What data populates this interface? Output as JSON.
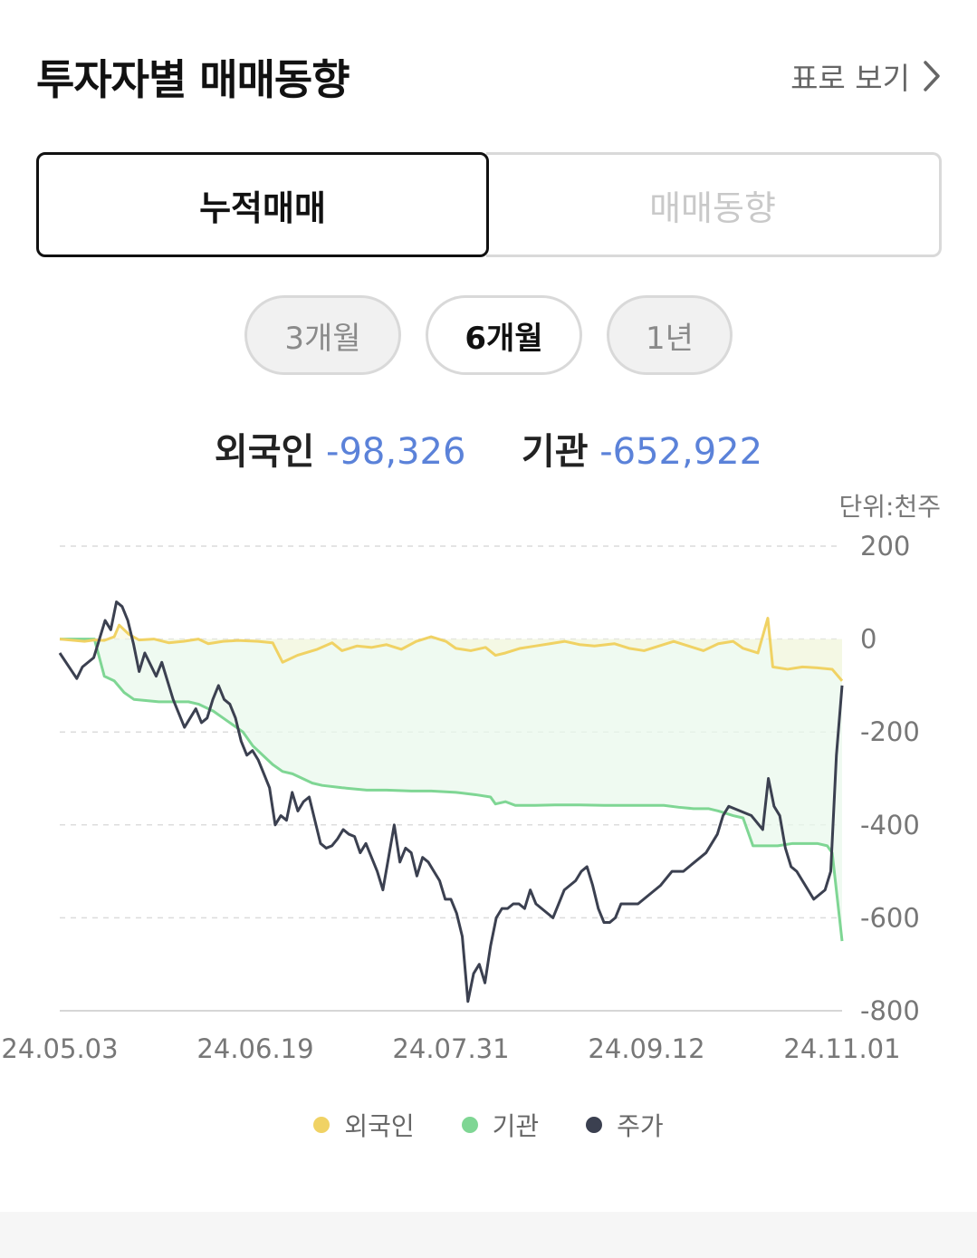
{
  "header": {
    "title": "투자자별 매매동향",
    "table_link": "표로 보기"
  },
  "tabs": [
    {
      "label": "누적매매",
      "active": true
    },
    {
      "label": "매매동향",
      "active": false
    }
  ],
  "periods": [
    {
      "label": "3개월",
      "active": false
    },
    {
      "label": "6개월",
      "active": true
    },
    {
      "label": "1년",
      "active": false
    }
  ],
  "summary": {
    "foreign_label": "외국인",
    "foreign_value": "-98,326",
    "inst_label": "기관",
    "inst_value": "-652,922"
  },
  "unit": "단위:천주",
  "colors": {
    "foreign": "#f0d264",
    "institution": "#7fd694",
    "price": "#3b4050",
    "value_text": "#5b82d9"
  },
  "chart_data": {
    "type": "line",
    "title": "",
    "xlabel": "",
    "ylabel": "",
    "ylim": [
      -800,
      200
    ],
    "yticks": [
      "200",
      "0",
      "-200",
      "-400",
      "-600",
      "-800"
    ],
    "xticks": [
      "24.05.03",
      "24.06.19",
      "24.07.31",
      "24.09.12",
      "24.11.01"
    ],
    "grid": true,
    "legend_position": "bottom",
    "series": [
      {
        "name": "외국인",
        "key": "foreign",
        "points": [
          [
            0,
            0
          ],
          [
            5,
            -5
          ],
          [
            7,
            -2
          ],
          [
            9,
            -3
          ],
          [
            11,
            5
          ],
          [
            12,
            30
          ],
          [
            14,
            10
          ],
          [
            16,
            -2
          ],
          [
            19,
            0
          ],
          [
            22,
            -8
          ],
          [
            25,
            -5
          ],
          [
            28,
            0
          ],
          [
            30,
            -10
          ],
          [
            33,
            -5
          ],
          [
            36,
            -3
          ],
          [
            40,
            -5
          ],
          [
            43,
            -8
          ],
          [
            45,
            -50
          ],
          [
            48,
            -35
          ],
          [
            52,
            -22
          ],
          [
            55,
            -8
          ],
          [
            57,
            -25
          ],
          [
            60,
            -15
          ],
          [
            63,
            -18
          ],
          [
            66,
            -12
          ],
          [
            69,
            -22
          ],
          [
            72,
            -5
          ],
          [
            75,
            5
          ],
          [
            78,
            -5
          ],
          [
            80,
            -20
          ],
          [
            83,
            -25
          ],
          [
            86,
            -18
          ],
          [
            88,
            -35
          ],
          [
            90,
            -30
          ],
          [
            93,
            -20
          ],
          [
            96,
            -15
          ],
          [
            99,
            -10
          ],
          [
            102,
            -5
          ],
          [
            105,
            -12
          ],
          [
            108,
            -15
          ],
          [
            112,
            -10
          ],
          [
            115,
            -20
          ],
          [
            118,
            -25
          ],
          [
            121,
            -15
          ],
          [
            124,
            -5
          ],
          [
            127,
            -15
          ],
          [
            130,
            -25
          ],
          [
            133,
            -10
          ],
          [
            136,
            -5
          ],
          [
            138,
            -20
          ],
          [
            141,
            -30
          ],
          [
            143,
            45
          ],
          [
            144,
            -60
          ],
          [
            147,
            -65
          ],
          [
            150,
            -60
          ],
          [
            153,
            -62
          ],
          [
            156,
            -65
          ],
          [
            158,
            -90
          ]
        ]
      },
      {
        "name": "기관",
        "key": "institution",
        "points": [
          [
            0,
            0
          ],
          [
            7,
            0
          ],
          [
            9,
            -80
          ],
          [
            11,
            -90
          ],
          [
            13,
            -115
          ],
          [
            15,
            -130
          ],
          [
            20,
            -135
          ],
          [
            26,
            -135
          ],
          [
            28,
            -140
          ],
          [
            31,
            -155
          ],
          [
            33,
            -170
          ],
          [
            35,
            -185
          ],
          [
            37,
            -200
          ],
          [
            39,
            -230
          ],
          [
            41,
            -250
          ],
          [
            43,
            -270
          ],
          [
            45,
            -285
          ],
          [
            47,
            -290
          ],
          [
            49,
            -300
          ],
          [
            51,
            -310
          ],
          [
            53,
            -315
          ],
          [
            57,
            -320
          ],
          [
            62,
            -325
          ],
          [
            66,
            -325
          ],
          [
            71,
            -327
          ],
          [
            75,
            -327
          ],
          [
            80,
            -330
          ],
          [
            84,
            -335
          ],
          [
            87,
            -340
          ],
          [
            88,
            -355
          ],
          [
            90,
            -350
          ],
          [
            92,
            -358
          ],
          [
            96,
            -358
          ],
          [
            100,
            -357
          ],
          [
            105,
            -357
          ],
          [
            110,
            -358
          ],
          [
            115,
            -358
          ],
          [
            119,
            -358
          ],
          [
            122,
            -358
          ],
          [
            125,
            -362
          ],
          [
            128,
            -365
          ],
          [
            131,
            -365
          ],
          [
            133,
            -370
          ],
          [
            136,
            -380
          ],
          [
            138,
            -385
          ],
          [
            140,
            -445
          ],
          [
            142,
            -445
          ],
          [
            145,
            -445
          ],
          [
            148,
            -440
          ],
          [
            150,
            -440
          ],
          [
            153,
            -440
          ],
          [
            155,
            -445
          ],
          [
            156,
            -460
          ],
          [
            158,
            -650
          ]
        ]
      },
      {
        "name": "주가",
        "key": "price",
        "points": [
          [
            0,
            -30
          ],
          [
            3,
            -85
          ],
          [
            4,
            -60
          ],
          [
            6,
            -40
          ],
          [
            7,
            0
          ],
          [
            8,
            40
          ],
          [
            9,
            20
          ],
          [
            10,
            80
          ],
          [
            11,
            70
          ],
          [
            12,
            40
          ],
          [
            13,
            -10
          ],
          [
            14,
            -70
          ],
          [
            15,
            -30
          ],
          [
            16,
            -55
          ],
          [
            17,
            -80
          ],
          [
            18,
            -50
          ],
          [
            19,
            -90
          ],
          [
            20,
            -130
          ],
          [
            21,
            -160
          ],
          [
            22,
            -190
          ],
          [
            23,
            -170
          ],
          [
            24,
            -150
          ],
          [
            25,
            -180
          ],
          [
            26,
            -170
          ],
          [
            27,
            -130
          ],
          [
            28,
            -100
          ],
          [
            29,
            -130
          ],
          [
            30,
            -140
          ],
          [
            31,
            -170
          ],
          [
            32,
            -220
          ],
          [
            33,
            -250
          ],
          [
            34,
            -240
          ],
          [
            35,
            -260
          ],
          [
            36,
            -290
          ],
          [
            37,
            -320
          ],
          [
            38,
            -400
          ],
          [
            39,
            -380
          ],
          [
            40,
            -390
          ],
          [
            41,
            -330
          ],
          [
            42,
            -370
          ],
          [
            43,
            -350
          ],
          [
            44,
            -340
          ],
          [
            45,
            -390
          ],
          [
            46,
            -440
          ],
          [
            47,
            -450
          ],
          [
            48,
            -445
          ],
          [
            49,
            -430
          ],
          [
            50,
            -410
          ],
          [
            51,
            -420
          ],
          [
            52,
            -425
          ],
          [
            53,
            -460
          ],
          [
            54,
            -440
          ],
          [
            55,
            -470
          ],
          [
            56,
            -500
          ],
          [
            57,
            -540
          ],
          [
            58,
            -470
          ],
          [
            59,
            -400
          ],
          [
            60,
            -480
          ],
          [
            61,
            -450
          ],
          [
            62,
            -460
          ],
          [
            63,
            -510
          ],
          [
            64,
            -470
          ],
          [
            65,
            -480
          ],
          [
            66,
            -500
          ],
          [
            67,
            -520
          ],
          [
            68,
            -560
          ],
          [
            69,
            -560
          ],
          [
            70,
            -590
          ],
          [
            71,
            -640
          ],
          [
            72,
            -780
          ],
          [
            73,
            -720
          ],
          [
            74,
            -700
          ],
          [
            75,
            -740
          ],
          [
            76,
            -660
          ],
          [
            77,
            -600
          ],
          [
            78,
            -580
          ],
          [
            79,
            -580
          ],
          [
            80,
            -570
          ],
          [
            81,
            -570
          ],
          [
            82,
            -580
          ],
          [
            83,
            -540
          ],
          [
            84,
            -570
          ],
          [
            85,
            -580
          ],
          [
            86,
            -590
          ],
          [
            87,
            -600
          ],
          [
            88,
            -570
          ],
          [
            89,
            -540
          ],
          [
            90,
            -530
          ],
          [
            91,
            -520
          ],
          [
            92,
            -500
          ],
          [
            93,
            -490
          ],
          [
            94,
            -530
          ],
          [
            95,
            -580
          ],
          [
            96,
            -610
          ],
          [
            97,
            -610
          ],
          [
            98,
            -600
          ],
          [
            99,
            -570
          ],
          [
            100,
            -570
          ],
          [
            102,
            -570
          ],
          [
            104,
            -550
          ],
          [
            106,
            -530
          ],
          [
            108,
            -500
          ],
          [
            110,
            -500
          ],
          [
            112,
            -480
          ],
          [
            114,
            -460
          ],
          [
            116,
            -420
          ],
          [
            117,
            -380
          ],
          [
            118,
            -360
          ],
          [
            120,
            -370
          ],
          [
            122,
            -380
          ],
          [
            124,
            -410
          ],
          [
            125,
            -300
          ],
          [
            126,
            -360
          ],
          [
            127,
            -380
          ],
          [
            128,
            -450
          ],
          [
            129,
            -490
          ],
          [
            130,
            -500
          ],
          [
            131,
            -520
          ],
          [
            132,
            -540
          ],
          [
            133,
            -560
          ],
          [
            134,
            -550
          ],
          [
            135,
            -540
          ],
          [
            136,
            -500
          ],
          [
            137,
            -250
          ],
          [
            138,
            -100
          ]
        ]
      }
    ]
  }
}
